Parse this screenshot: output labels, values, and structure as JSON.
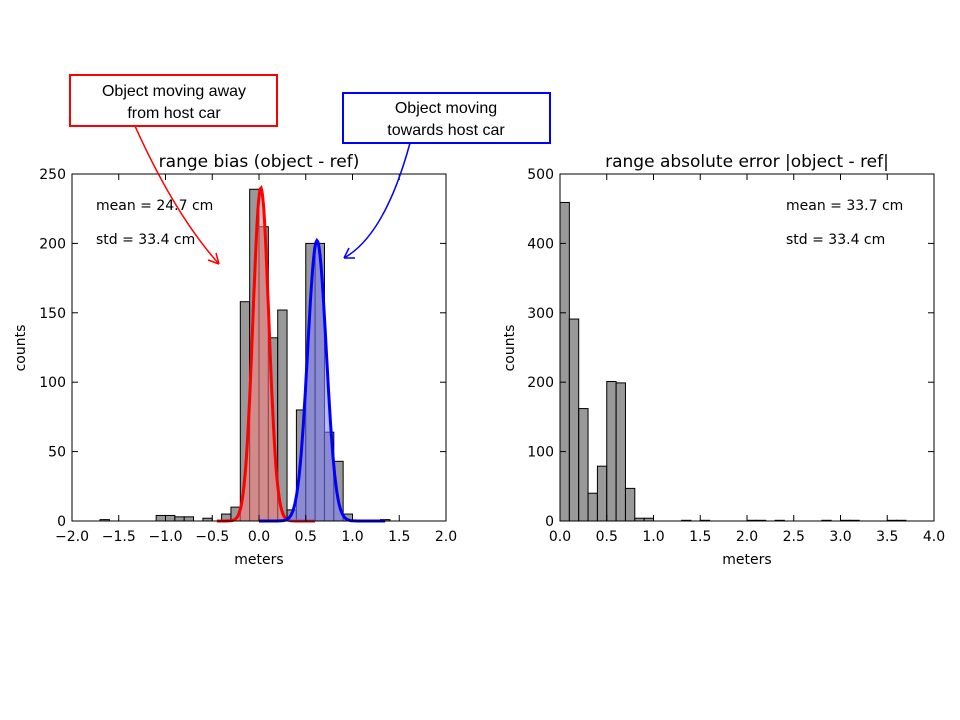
{
  "colors": {
    "hist": "#808080",
    "away": "#ff0000",
    "towards": "#0000ff",
    "away_fill": "#ff8080",
    "towards_fill": "#8080ff"
  },
  "chart_data": [
    {
      "type": "bar",
      "title": "range bias (object - ref)",
      "xlabel": "meters",
      "ylabel": "counts",
      "xlim": [
        -2.0,
        2.0
      ],
      "ylim": [
        0,
        250
      ],
      "xticks": [
        "−2.0",
        "−1.5",
        "−1.0",
        "−0.5",
        "0.0",
        "0.5",
        "1.0",
        "1.5",
        "2.0"
      ],
      "xtick_values": [
        -2.0,
        -1.5,
        -1.0,
        -0.5,
        0.0,
        0.5,
        1.0,
        1.5,
        2.0
      ],
      "yticks": [
        "0",
        "50",
        "100",
        "150",
        "200",
        "250"
      ],
      "ytick_values": [
        0,
        50,
        100,
        150,
        200,
        250
      ],
      "bins": [
        {
          "x0": -1.7,
          "x1": -1.6,
          "count": 1
        },
        {
          "x0": -1.1,
          "x1": -1.0,
          "count": 4
        },
        {
          "x0": -1.0,
          "x1": -0.9,
          "count": 4
        },
        {
          "x0": -0.9,
          "x1": -0.8,
          "count": 3
        },
        {
          "x0": -0.8,
          "x1": -0.7,
          "count": 3
        },
        {
          "x0": -0.6,
          "x1": -0.5,
          "count": 2
        },
        {
          "x0": -0.4,
          "x1": -0.3,
          "count": 5
        },
        {
          "x0": -0.3,
          "x1": -0.2,
          "count": 10
        },
        {
          "x0": -0.2,
          "x1": -0.1,
          "count": 158
        },
        {
          "x0": -0.1,
          "x1": 0.0,
          "count": 239
        },
        {
          "x0": 0.0,
          "x1": 0.1,
          "count": 212
        },
        {
          "x0": 0.1,
          "x1": 0.2,
          "count": 132
        },
        {
          "x0": 0.2,
          "x1": 0.3,
          "count": 152
        },
        {
          "x0": 0.3,
          "x1": 0.4,
          "count": 8
        },
        {
          "x0": 0.4,
          "x1": 0.5,
          "count": 80
        },
        {
          "x0": 0.5,
          "x1": 0.6,
          "count": 200
        },
        {
          "x0": 0.6,
          "x1": 0.7,
          "count": 200
        },
        {
          "x0": 0.7,
          "x1": 0.8,
          "count": 64
        },
        {
          "x0": 0.8,
          "x1": 0.9,
          "count": 43
        },
        {
          "x0": 0.9,
          "x1": 1.0,
          "count": 5
        },
        {
          "x0": 1.3,
          "x1": 1.4,
          "count": 1
        }
      ],
      "series": [
        {
          "color": "away",
          "mean": 0.02,
          "std": 0.085,
          "peak": 240,
          "xmin": -0.45,
          "xmax": 0.6
        },
        {
          "color": "towards",
          "mean": 0.62,
          "std": 0.1,
          "peak": 202,
          "xmin": 0.0,
          "xmax": 1.35
        }
      ],
      "stats": [
        "mean = 24.7 cm",
        "std = 33.4 cm"
      ],
      "annotations": [
        {
          "lines": [
            "Object moving away",
            "from host car"
          ],
          "color": "away"
        },
        {
          "lines": [
            "Object moving",
            "towards host car"
          ],
          "color": "towards"
        }
      ]
    },
    {
      "type": "bar",
      "title": "range absolute error |object - ref|",
      "xlabel": "meters",
      "ylabel": "counts",
      "xlim": [
        0.0,
        4.0
      ],
      "ylim": [
        0,
        500
      ],
      "xticks": [
        "0.0",
        "0.5",
        "1.0",
        "1.5",
        "2.0",
        "2.5",
        "3.0",
        "3.5",
        "4.0"
      ],
      "xtick_values": [
        0.0,
        0.5,
        1.0,
        1.5,
        2.0,
        2.5,
        3.0,
        3.5,
        4.0
      ],
      "yticks": [
        "0",
        "100",
        "200",
        "300",
        "400",
        "500"
      ],
      "ytick_values": [
        0,
        100,
        200,
        300,
        400,
        500
      ],
      "bins": [
        {
          "x0": 0.0,
          "x1": 0.1,
          "count": 459
        },
        {
          "x0": 0.1,
          "x1": 0.2,
          "count": 291
        },
        {
          "x0": 0.2,
          "x1": 0.3,
          "count": 162
        },
        {
          "x0": 0.3,
          "x1": 0.4,
          "count": 40
        },
        {
          "x0": 0.4,
          "x1": 0.5,
          "count": 79
        },
        {
          "x0": 0.5,
          "x1": 0.6,
          "count": 201
        },
        {
          "x0": 0.6,
          "x1": 0.7,
          "count": 199
        },
        {
          "x0": 0.7,
          "x1": 0.8,
          "count": 47
        },
        {
          "x0": 0.8,
          "x1": 0.9,
          "count": 4
        },
        {
          "x0": 0.9,
          "x1": 1.0,
          "count": 4
        },
        {
          "x0": 1.3,
          "x1": 1.4,
          "count": 1
        },
        {
          "x0": 1.5,
          "x1": 1.6,
          "count": 1
        },
        {
          "x0": 2.0,
          "x1": 2.1,
          "count": 1
        },
        {
          "x0": 2.1,
          "x1": 2.2,
          "count": 1
        },
        {
          "x0": 2.3,
          "x1": 2.4,
          "count": 1
        },
        {
          "x0": 2.8,
          "x1": 2.9,
          "count": 1
        },
        {
          "x0": 3.0,
          "x1": 3.1,
          "count": 1
        },
        {
          "x0": 3.1,
          "x1": 3.2,
          "count": 1
        },
        {
          "x0": 3.5,
          "x1": 3.6,
          "count": 1
        },
        {
          "x0": 3.6,
          "x1": 3.7,
          "count": 1
        }
      ],
      "stats": [
        "mean = 33.7 cm",
        "std = 33.4 cm"
      ]
    }
  ]
}
